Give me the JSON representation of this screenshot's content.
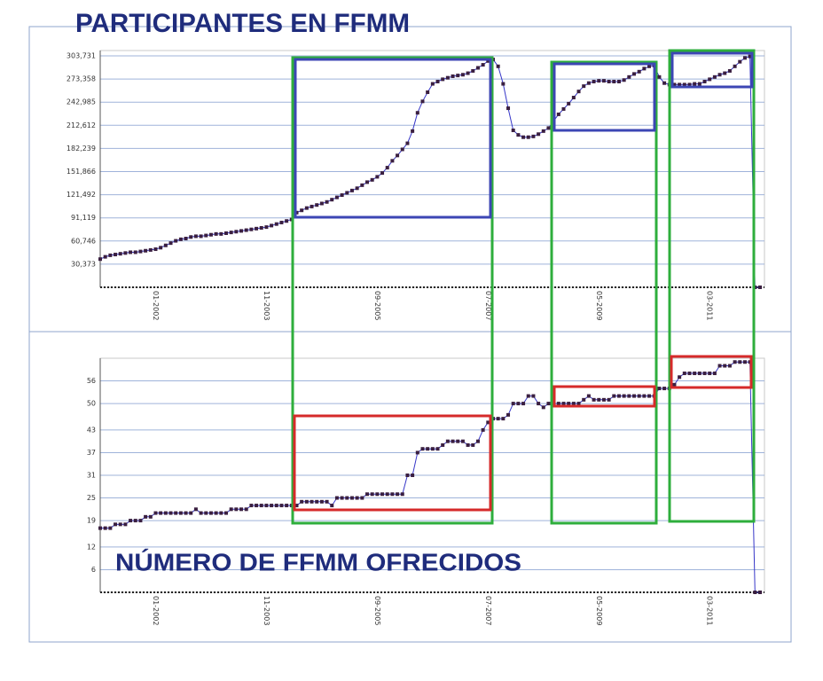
{
  "chart_data": [
    {
      "type": "line",
      "title": "PARTICIPANTES EN FFMM",
      "color": "#3636c8",
      "marker_color": "#3a1f40",
      "grid": true,
      "ylim": [
        0,
        303731
      ],
      "yticks": [
        {
          "value": 30373,
          "label": "30,373"
        },
        {
          "value": 60746,
          "label": "60,746"
        },
        {
          "value": 91119,
          "label": "91,119"
        },
        {
          "value": 121492,
          "label": "121,492"
        },
        {
          "value": 151866,
          "label": "151,866"
        },
        {
          "value": 182239,
          "label": "182,239"
        },
        {
          "value": 212612,
          "label": "212,612"
        },
        {
          "value": 242985,
          "label": "242,985"
        },
        {
          "value": 273358,
          "label": "273,358"
        },
        {
          "value": 303731,
          "label": "303,731"
        }
      ],
      "categories": [
        null,
        null,
        null,
        null,
        null,
        null,
        null,
        null,
        null,
        null,
        null,
        "01-2002",
        null,
        null,
        null,
        null,
        null,
        null,
        null,
        null,
        null,
        null,
        null,
        null,
        null,
        null,
        null,
        null,
        null,
        null,
        null,
        null,
        null,
        "11-2003",
        null,
        null,
        null,
        null,
        null,
        null,
        null,
        null,
        null,
        null,
        null,
        null,
        null,
        null,
        null,
        null,
        null,
        null,
        null,
        null,
        null,
        "09-2005",
        null,
        null,
        null,
        null,
        null,
        null,
        null,
        null,
        null,
        null,
        null,
        null,
        null,
        null,
        null,
        null,
        null,
        null,
        null,
        null,
        null,
        "07-2007",
        null,
        null,
        null,
        null,
        null,
        null,
        null,
        null,
        null,
        null,
        null,
        null,
        null,
        null,
        null,
        null,
        null,
        null,
        null,
        null,
        null,
        "05-2009",
        null,
        null,
        null,
        null,
        null,
        null,
        null,
        null,
        null,
        null,
        null,
        null,
        null,
        null,
        null,
        null,
        null,
        null,
        null,
        null,
        null,
        "03-2011",
        null,
        null,
        null,
        null,
        null,
        null,
        null,
        null,
        null,
        null
      ],
      "values": [
        37000,
        40000,
        42000,
        43000,
        44000,
        45000,
        46000,
        46000,
        47000,
        48000,
        49000,
        50000,
        52000,
        55000,
        58000,
        61000,
        63000,
        64000,
        66000,
        67000,
        67000,
        68000,
        69000,
        70000,
        70000,
        71000,
        72000,
        73000,
        74000,
        75000,
        76000,
        77000,
        78000,
        79000,
        81000,
        83000,
        85000,
        87000,
        89000,
        98000,
        101000,
        104000,
        106000,
        108000,
        110000,
        112000,
        115000,
        118000,
        121000,
        124000,
        127000,
        130000,
        134000,
        138000,
        141000,
        145000,
        150000,
        157000,
        166000,
        173000,
        181000,
        189000,
        205000,
        229000,
        244000,
        256000,
        267000,
        270000,
        273000,
        275000,
        277000,
        278000,
        279000,
        281000,
        284000,
        288000,
        292000,
        297000,
        299000,
        290000,
        267000,
        235000,
        206000,
        200000,
        197000,
        197000,
        198000,
        201000,
        205000,
        209000,
        218000,
        227000,
        234000,
        241000,
        249000,
        257000,
        264000,
        268000,
        270000,
        271000,
        271000,
        270000,
        270000,
        270000,
        272000,
        276000,
        280000,
        283000,
        287000,
        290000,
        291000,
        276000,
        268000,
        266000,
        266000,
        266000,
        266000,
        266000,
        267000,
        267000,
        270000,
        273000,
        276000,
        279000,
        281000,
        284000,
        290000,
        296000,
        301000,
        303000,
        0,
        0
      ]
    },
    {
      "type": "line",
      "title": "NÚMERO DE FFMM OFRECIDOS",
      "color": "#3636c8",
      "marker_color": "#3a1f40",
      "grid": true,
      "ylim": [
        0,
        62
      ],
      "yticks": [
        6,
        12,
        19,
        25,
        31,
        37,
        43,
        50,
        56
      ],
      "categories": [
        null,
        null,
        null,
        null,
        null,
        null,
        null,
        null,
        null,
        null,
        null,
        "01-2002",
        null,
        null,
        null,
        null,
        null,
        null,
        null,
        null,
        null,
        null,
        null,
        null,
        null,
        null,
        null,
        null,
        null,
        null,
        null,
        null,
        null,
        "11-2003",
        null,
        null,
        null,
        null,
        null,
        null,
        null,
        null,
        null,
        null,
        null,
        null,
        null,
        null,
        null,
        null,
        null,
        null,
        null,
        null,
        null,
        "09-2005",
        null,
        null,
        null,
        null,
        null,
        null,
        null,
        null,
        null,
        null,
        null,
        null,
        null,
        null,
        null,
        null,
        null,
        null,
        null,
        null,
        null,
        "07-2007",
        null,
        null,
        null,
        null,
        null,
        null,
        null,
        null,
        null,
        null,
        null,
        null,
        null,
        null,
        null,
        null,
        null,
        null,
        null,
        null,
        null,
        "05-2009",
        null,
        null,
        null,
        null,
        null,
        null,
        null,
        null,
        null,
        null,
        null,
        null,
        null,
        null,
        null,
        null,
        null,
        null,
        null,
        null,
        null,
        "03-2011",
        null,
        null,
        null,
        null,
        null,
        null,
        null,
        null,
        null,
        null
      ],
      "values": [
        17,
        17,
        17,
        18,
        18,
        18,
        19,
        19,
        19,
        20,
        20,
        21,
        21,
        21,
        21,
        21,
        21,
        21,
        21,
        22,
        21,
        21,
        21,
        21,
        21,
        21,
        22,
        22,
        22,
        22,
        23,
        23,
        23,
        23,
        23,
        23,
        23,
        23,
        23,
        23,
        24,
        24,
        24,
        24,
        24,
        24,
        23,
        25,
        25,
        25,
        25,
        25,
        25,
        26,
        26,
        26,
        26,
        26,
        26,
        26,
        26,
        31,
        31,
        37,
        38,
        38,
        38,
        38,
        39,
        40,
        40,
        40,
        40,
        39,
        39,
        40,
        43,
        45,
        46,
        46,
        46,
        47,
        50,
        50,
        50,
        52,
        52,
        50,
        49,
        50,
        50,
        50,
        50,
        50,
        50,
        50,
        51,
        52,
        51,
        51,
        51,
        51,
        52,
        52,
        52,
        52,
        52,
        52,
        52,
        52,
        52,
        54,
        54,
        54,
        55,
        57,
        58,
        58,
        58,
        58,
        58,
        58,
        58,
        60,
        60,
        60,
        61,
        61,
        61,
        61,
        0,
        0
      ]
    }
  ]
}
